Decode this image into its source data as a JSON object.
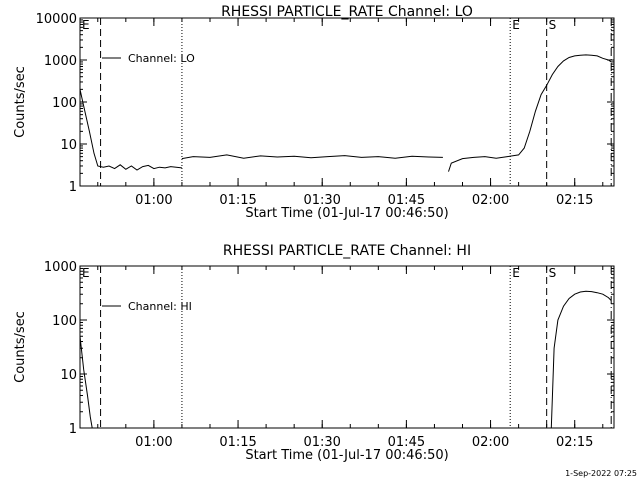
{
  "footer": {
    "date_stamp": "1-Sep-2022 07:25"
  },
  "chart_data": [
    {
      "type": "line",
      "title": "RHESSI PARTICLE_RATE Channel: LO",
      "xlabel": "Start Time (01-Jul-17 00:46:50)",
      "ylabel": "Counts/sec",
      "y_scale": "log",
      "ylim": [
        1,
        10000
      ],
      "xlim": [
        "00:46:50",
        "02:22:00"
      ],
      "x_ticks": [
        "01:00",
        "01:15",
        "01:30",
        "01:45",
        "02:00",
        "02:15"
      ],
      "y_ticks": [
        "1",
        "10",
        "100",
        "1000",
        "10000"
      ],
      "legend": {
        "entry": "Channel: LO",
        "placement": "top-left"
      },
      "grid": false,
      "markers": [
        {
          "label": "E",
          "time": "00:46:50",
          "style": "dotted"
        },
        {
          "label": "",
          "time": "00:50:30",
          "style": "dashed"
        },
        {
          "label": "",
          "time": "01:05:00",
          "style": "dotted"
        },
        {
          "label": "E",
          "time": "02:03:30",
          "style": "dotted"
        },
        {
          "label": "S",
          "time": "02:10:00",
          "style": "dashed"
        },
        {
          "label": "",
          "time": "02:21:30",
          "style": "dashdot"
        }
      ],
      "series": [
        {
          "name": "Channel: LO",
          "segments": [
            {
              "x": [
                "00:46:50",
                "00:47:30",
                "00:48:30",
                "00:49:20",
                "00:50:00",
                "00:51:00",
                "00:52:00",
                "00:53:00",
                "00:54:00",
                "00:55:00",
                "00:56:00",
                "00:57:00",
                "00:58:00",
                "00:59:00",
                "01:00:00",
                "01:01:00",
                "01:02:00",
                "01:03:00",
                "01:04:00",
                "01:05:00"
              ],
              "y": [
                200,
                80,
                20,
                6,
                3,
                2.8,
                3.0,
                2.6,
                3.2,
                2.5,
                3.0,
                2.4,
                2.9,
                3.1,
                2.6,
                2.8,
                2.7,
                2.9,
                2.8,
                2.7
              ]
            },
            {
              "x": [
                "01:05:00",
                "01:07:00",
                "01:10:00",
                "01:13:00",
                "01:16:00",
                "01:19:00",
                "01:22:00",
                "01:25:00",
                "01:28:00",
                "01:31:00",
                "01:34:00",
                "01:37:00",
                "01:40:00",
                "01:43:00",
                "01:46:00",
                "01:49:00",
                "01:51:30"
              ],
              "y": [
                4.5,
                5.0,
                4.8,
                5.5,
                4.6,
                5.2,
                4.9,
                5.1,
                4.7,
                5.0,
                5.3,
                4.8,
                5.0,
                4.6,
                5.1,
                4.9,
                4.8
              ]
            },
            {
              "x": [
                "01:52:30",
                "01:53:00",
                "01:55:00",
                "01:57:00",
                "01:59:00",
                "02:01:00",
                "02:03:00",
                "02:05:00",
                "02:06:00",
                "02:07:00",
                "02:08:00",
                "02:09:00",
                "02:10:00",
                "02:11:00",
                "02:12:00",
                "02:13:00",
                "02:14:00",
                "02:15:00",
                "02:16:00",
                "02:17:00",
                "02:18:00",
                "02:19:00",
                "02:20:00",
                "02:21:00",
                "02:21:30"
              ],
              "y": [
                2.2,
                3.5,
                4.5,
                4.8,
                5.0,
                4.6,
                5.0,
                5.5,
                8,
                20,
                60,
                150,
                250,
                450,
                700,
                950,
                1150,
                1250,
                1300,
                1320,
                1300,
                1250,
                1100,
                1000,
                900
              ]
            }
          ]
        }
      ]
    },
    {
      "type": "line",
      "title": "RHESSI PARTICLE_RATE Channel: HI",
      "xlabel": "Start Time (01-Jul-17 00:46:50)",
      "ylabel": "Counts/sec",
      "y_scale": "log",
      "ylim": [
        1,
        1000
      ],
      "xlim": [
        "00:46:50",
        "02:22:00"
      ],
      "x_ticks": [
        "01:00",
        "01:15",
        "01:30",
        "01:45",
        "02:00",
        "02:15"
      ],
      "y_ticks": [
        "1",
        "10",
        "100",
        "1000"
      ],
      "legend": {
        "entry": "Channel: HI",
        "placement": "top-left"
      },
      "grid": false,
      "markers": [
        {
          "label": "E",
          "time": "00:46:50",
          "style": "dotted"
        },
        {
          "label": "",
          "time": "00:50:30",
          "style": "dashed"
        },
        {
          "label": "",
          "time": "01:05:00",
          "style": "dotted"
        },
        {
          "label": "E",
          "time": "02:03:30",
          "style": "dotted"
        },
        {
          "label": "S",
          "time": "02:10:00",
          "style": "dashed"
        },
        {
          "label": "",
          "time": "02:21:30",
          "style": "dashdot"
        }
      ],
      "series": [
        {
          "name": "Channel: HI",
          "segments": [
            {
              "x": [
                "00:46:50",
                "00:47:30",
                "00:48:10",
                "00:48:40",
                "00:49:00"
              ],
              "y": [
                50,
                12,
                4,
                1.6,
                1.0
              ]
            },
            {
              "x": [
                "02:10:50",
                "02:11:20",
                "02:12:00",
                "02:13:00",
                "02:14:00",
                "02:15:00",
                "02:16:00",
                "02:17:00",
                "02:18:00",
                "02:19:00",
                "02:20:00",
                "02:21:00",
                "02:21:30"
              ],
              "y": [
                1.0,
                30,
                100,
                180,
                250,
                300,
                330,
                340,
                335,
                320,
                300,
                260,
                230
              ]
            }
          ]
        }
      ]
    }
  ]
}
